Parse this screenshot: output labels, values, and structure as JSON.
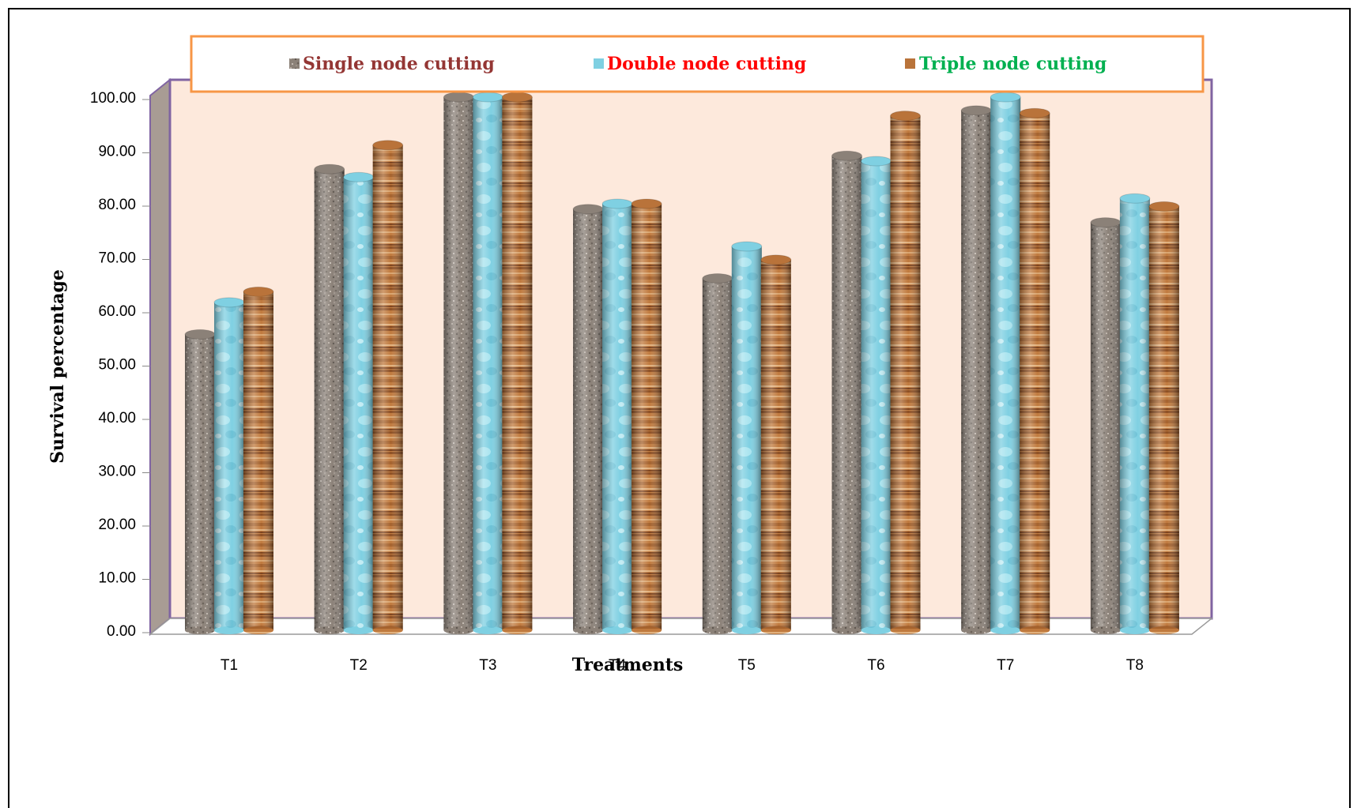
{
  "chart_data": {
    "type": "bar",
    "title": "",
    "xlabel": "Treatments",
    "ylabel": "Survival percentage",
    "categories": [
      "T1",
      "T2",
      "T3",
      "T4",
      "T5",
      "T6",
      "T7",
      "T8"
    ],
    "series": [
      {
        "name": "Single node cutting",
        "values": [
          55.5,
          86.5,
          100.0,
          79.0,
          66.0,
          89.0,
          97.5,
          76.5
        ],
        "color": "#8b8178",
        "label_color": "#943634"
      },
      {
        "name": "Double node cutting",
        "values": [
          61.5,
          85.0,
          100.0,
          80.0,
          72.0,
          88.0,
          100.0,
          81.0
        ],
        "color": "#7fd0e2",
        "label_color": "#ff0000"
      },
      {
        "name": "Triple node cutting",
        "values": [
          63.5,
          91.0,
          100.0,
          80.0,
          69.5,
          96.5,
          97.0,
          79.5
        ],
        "color": "#b9733a",
        "label_color": "#00b050"
      }
    ],
    "ylim": [
      0,
      100
    ],
    "ytick_labels": [
      "0.00",
      "10.00",
      "20.00",
      "30.00",
      "40.00",
      "50.00",
      "60.00",
      "70.00",
      "80.00",
      "90.00",
      "100.00"
    ],
    "grid": false,
    "legend_position": "top",
    "colors": {
      "plot_background": "#fde9dc",
      "plot_border": "#8064a2",
      "side_wall": "#a89c94",
      "legend_border": "#f79646"
    }
  }
}
